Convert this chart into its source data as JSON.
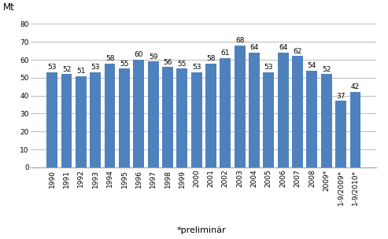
{
  "categories": [
    "1990",
    "1991",
    "1992",
    "1993",
    "1994",
    "1995",
    "1996",
    "1997",
    "1998",
    "1999",
    "2000",
    "2001",
    "2002",
    "2003",
    "2004",
    "2005",
    "2006",
    "2007",
    "2008",
    "2009*",
    "1-9/2009*",
    "1-9/2010*"
  ],
  "values": [
    53,
    52,
    51,
    53,
    58,
    55,
    60,
    59,
    56,
    55,
    53,
    58,
    61,
    68,
    64,
    53,
    64,
    62,
    54,
    52,
    37,
    42
  ],
  "bar_color": "#4F81BD",
  "ylabel": "Mt",
  "xlabel": "*preliminär",
  "ylim": [
    0,
    80
  ],
  "yticks": [
    0,
    10,
    20,
    30,
    40,
    50,
    60,
    70,
    80
  ],
  "label_fontsize": 6.5,
  "tick_fontsize": 6.5,
  "ylabel_fontsize": 8.5,
  "xlabel_fontsize": 8.0,
  "bar_width": 0.75,
  "grid_color": "#C0C0C0",
  "grid_linewidth": 0.8
}
